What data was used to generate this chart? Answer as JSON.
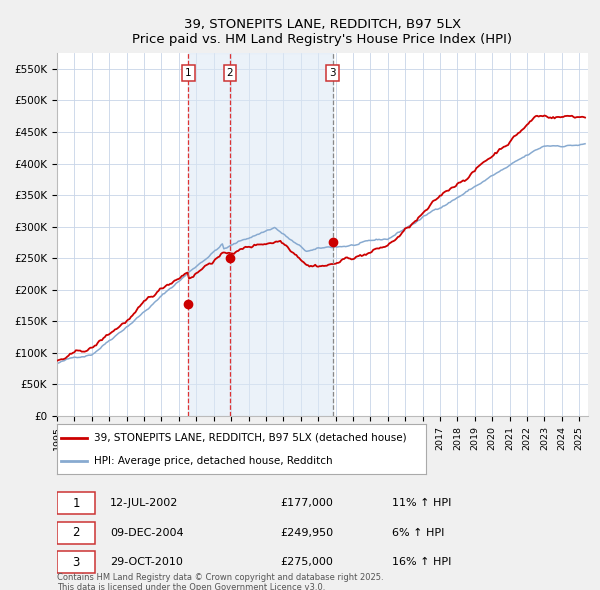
{
  "title": "39, STONEPITS LANE, REDDITCH, B97 5LX",
  "subtitle": "Price paid vs. HM Land Registry's House Price Index (HPI)",
  "bg_color": "#f0f0f0",
  "plot_bg_color": "#ffffff",
  "grid_color": "#c8d4e8",
  "red_line_color": "#cc0000",
  "blue_line_color": "#88aad0",
  "sale_marker_color": "#cc0000",
  "vline_color_red": "#dd3333",
  "vline_color_grey": "#888888",
  "span_fill": "#dce8f5",
  "span_alpha": 0.55,
  "legend_border_color": "#aaaaaa",
  "table_border_color": "#cc3333",
  "sales": [
    {
      "num": 1,
      "date_label": "12-JUL-2002",
      "date_x": 2002.53,
      "price": 177000,
      "pct": "11%",
      "dir": "↑",
      "vline_style": "red"
    },
    {
      "num": 2,
      "date_label": "09-DEC-2004",
      "date_x": 2004.94,
      "price": 249950,
      "pct": "6%",
      "dir": "↑",
      "vline_style": "red"
    },
    {
      "num": 3,
      "date_label": "29-OCT-2010",
      "date_x": 2010.83,
      "price": 275000,
      "pct": "16%",
      "dir": "↑",
      "vline_style": "grey"
    }
  ],
  "xmin": 1995.0,
  "xmax": 2025.5,
  "ymin": 0,
  "ymax": 575000,
  "yticks": [
    0,
    50000,
    100000,
    150000,
    200000,
    250000,
    300000,
    350000,
    400000,
    450000,
    500000,
    550000
  ],
  "ytick_labels": [
    "£0",
    "£50K",
    "£100K",
    "£150K",
    "£200K",
    "£250K",
    "£300K",
    "£350K",
    "£400K",
    "£450K",
    "£500K",
    "£550K"
  ],
  "footer": "Contains HM Land Registry data © Crown copyright and database right 2025.\nThis data is licensed under the Open Government Licence v3.0.",
  "legend_label_red": "39, STONEPITS LANE, REDDITCH, B97 5LX (detached house)",
  "legend_label_blue": "HPI: Average price, detached house, Redditch"
}
